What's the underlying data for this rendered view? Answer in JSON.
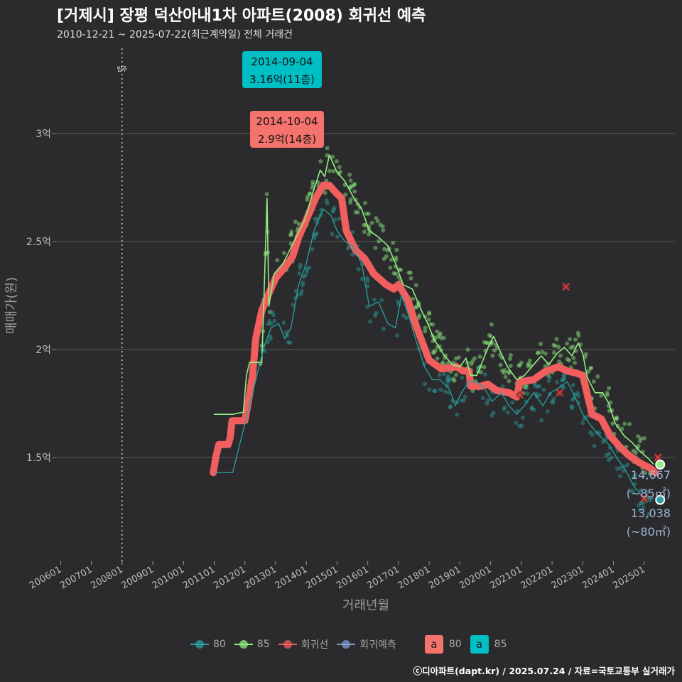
{
  "title": "[거제시] 장평 덕산아내1차 아파트(2008) 회귀선 예측",
  "subtitle": "2010-12-21 ~ 2025-07-22(최근계약일) 전체 거래건",
  "credit": "ⓒ디아파트(dapt.kr) / 2025.07.24 / 자료=국토교통부 실거래가",
  "colors": {
    "background": "#2b2b2d",
    "grid": "#5a5a5a",
    "area80": "#2aa0a0",
    "area85": "#90ee80",
    "regression": "#f05e5e",
    "forecast": "#7f9fcf",
    "label80": "#f4736c",
    "label85": "#00bfc4"
  },
  "legend": {
    "items": [
      {
        "key": "80",
        "label": "80",
        "color": "#2aa0a0"
      },
      {
        "key": "85",
        "label": "85",
        "color": "#90ee80"
      },
      {
        "key": "reg",
        "label": "회귀선",
        "color": "#f05e5e"
      },
      {
        "key": "fc",
        "label": "회귀예측",
        "color": "#7f9fcf"
      }
    ],
    "boxes": [
      {
        "letter": "a",
        "label": "80",
        "color": "#f4736c"
      },
      {
        "letter": "a",
        "label": "85",
        "color": "#00bfc4"
      }
    ]
  },
  "chart_data": {
    "type": "line",
    "xlabel": "거래년월",
    "ylabel": "매매가(원)",
    "x_range": [
      2005.83,
      2026.0
    ],
    "y_range": [
      1.02,
      3.42
    ],
    "y_ticks": [
      {
        "v": 1.5,
        "label": "1.5억"
      },
      {
        "v": 2.0,
        "label": "2억"
      },
      {
        "v": 2.5,
        "label": "2.5억"
      },
      {
        "v": 3.0,
        "label": "3억"
      }
    ],
    "x_ticks": [
      {
        "v": 2006.0,
        "label": "200601"
      },
      {
        "v": 2007.0,
        "label": "200701"
      },
      {
        "v": 2008.0,
        "label": "200801"
      },
      {
        "v": 2009.0,
        "label": "200901"
      },
      {
        "v": 2010.0,
        "label": "201001"
      },
      {
        "v": 2011.0,
        "label": "201101"
      },
      {
        "v": 2012.0,
        "label": "201201"
      },
      {
        "v": 2013.0,
        "label": "201301"
      },
      {
        "v": 2014.0,
        "label": "201401"
      },
      {
        "v": 2015.0,
        "label": "201501"
      },
      {
        "v": 2016.0,
        "label": "201601"
      },
      {
        "v": 2017.0,
        "label": "201701"
      },
      {
        "v": 2018.0,
        "label": "201801"
      },
      {
        "v": 2019.0,
        "label": "201901"
      },
      {
        "v": 2020.0,
        "label": "202001"
      },
      {
        "v": 2021.0,
        "label": "202101"
      },
      {
        "v": 2022.0,
        "label": "202201"
      },
      {
        "v": 2023.0,
        "label": "202301"
      },
      {
        "v": 2024.0,
        "label": "202401"
      },
      {
        "v": 2025.0,
        "label": "202501"
      }
    ],
    "move_in": {
      "x": 2008.0,
      "label": "입주"
    },
    "series": [
      {
        "name": "회귀선",
        "color": "#f05e5e",
        "points": [
          [
            2010.97,
            1.43
          ],
          [
            2011.05,
            1.5
          ],
          [
            2011.15,
            1.56
          ],
          [
            2011.45,
            1.56
          ],
          [
            2011.52,
            1.59
          ],
          [
            2011.58,
            1.67
          ],
          [
            2012.0,
            1.67
          ],
          [
            2012.1,
            1.75
          ],
          [
            2012.25,
            1.88
          ],
          [
            2012.35,
            2.05
          ],
          [
            2012.55,
            2.18
          ],
          [
            2012.75,
            2.25
          ],
          [
            2013.0,
            2.33
          ],
          [
            2013.3,
            2.38
          ],
          [
            2013.55,
            2.43
          ],
          [
            2013.75,
            2.52
          ],
          [
            2014.0,
            2.6
          ],
          [
            2014.3,
            2.7
          ],
          [
            2014.55,
            2.76
          ],
          [
            2014.75,
            2.76
          ],
          [
            2015.0,
            2.72
          ],
          [
            2015.15,
            2.7
          ],
          [
            2015.3,
            2.55
          ],
          [
            2015.6,
            2.46
          ],
          [
            2015.9,
            2.42
          ],
          [
            2016.2,
            2.35
          ],
          [
            2016.6,
            2.3
          ],
          [
            2016.85,
            2.28
          ],
          [
            2017.0,
            2.3
          ],
          [
            2017.3,
            2.23
          ],
          [
            2017.6,
            2.1
          ],
          [
            2018.0,
            1.95
          ],
          [
            2018.4,
            1.91
          ],
          [
            2018.9,
            1.92
          ],
          [
            2019.1,
            1.9
          ],
          [
            2019.3,
            1.9
          ],
          [
            2019.35,
            1.83
          ],
          [
            2019.7,
            1.83
          ],
          [
            2019.9,
            1.84
          ],
          [
            2020.2,
            1.81
          ],
          [
            2020.6,
            1.8
          ],
          [
            2020.85,
            1.78
          ],
          [
            2020.95,
            1.85
          ],
          [
            2021.4,
            1.86
          ],
          [
            2021.8,
            1.9
          ],
          [
            2022.2,
            1.92
          ],
          [
            2022.5,
            1.9
          ],
          [
            2022.8,
            1.89
          ],
          [
            2023.0,
            1.88
          ],
          [
            2023.3,
            1.7
          ],
          [
            2023.6,
            1.68
          ],
          [
            2023.9,
            1.6
          ],
          [
            2024.2,
            1.55
          ],
          [
            2024.5,
            1.51
          ],
          [
            2024.8,
            1.48
          ],
          [
            2025.2,
            1.45
          ],
          [
            2025.35,
            1.43
          ]
        ]
      },
      {
        "name": "85",
        "color": "#90ee80",
        "points": [
          [
            2011.0,
            1.7
          ],
          [
            2011.6,
            1.7
          ],
          [
            2011.95,
            1.71
          ],
          [
            2012.05,
            1.88
          ],
          [
            2012.15,
            1.94
          ],
          [
            2012.55,
            1.94
          ],
          [
            2012.6,
            2.15
          ],
          [
            2012.72,
            2.7
          ],
          [
            2012.78,
            2.2
          ],
          [
            2012.95,
            2.35
          ],
          [
            2013.25,
            2.4
          ],
          [
            2013.6,
            2.5
          ],
          [
            2013.95,
            2.6
          ],
          [
            2014.2,
            2.72
          ],
          [
            2014.45,
            2.83
          ],
          [
            2014.6,
            2.8
          ],
          [
            2014.75,
            2.9
          ],
          [
            2015.0,
            2.82
          ],
          [
            2015.25,
            2.78
          ],
          [
            2015.55,
            2.7
          ],
          [
            2015.8,
            2.65
          ],
          [
            2016.05,
            2.55
          ],
          [
            2016.35,
            2.52
          ],
          [
            2016.65,
            2.48
          ],
          [
            2016.9,
            2.4
          ],
          [
            2017.15,
            2.3
          ],
          [
            2017.45,
            2.28
          ],
          [
            2017.75,
            2.18
          ],
          [
            2017.95,
            2.12
          ],
          [
            2018.15,
            2.05
          ],
          [
            2018.45,
            1.98
          ],
          [
            2018.75,
            1.93
          ],
          [
            2019.0,
            1.92
          ],
          [
            2019.2,
            1.96
          ],
          [
            2019.35,
            1.88
          ],
          [
            2019.55,
            1.88
          ],
          [
            2019.75,
            1.95
          ],
          [
            2019.95,
            2.02
          ],
          [
            2020.1,
            2.06
          ],
          [
            2020.35,
            1.98
          ],
          [
            2020.55,
            1.92
          ],
          [
            2020.85,
            1.86
          ],
          [
            2021.1,
            1.88
          ],
          [
            2021.4,
            1.93
          ],
          [
            2021.65,
            1.97
          ],
          [
            2021.9,
            1.93
          ],
          [
            2022.15,
            1.98
          ],
          [
            2022.4,
            2.01
          ],
          [
            2022.65,
            1.97
          ],
          [
            2022.85,
            2.03
          ],
          [
            2023.0,
            1.98
          ],
          [
            2023.15,
            1.87
          ],
          [
            2023.4,
            1.8
          ],
          [
            2023.65,
            1.8
          ],
          [
            2023.85,
            1.75
          ],
          [
            2024.05,
            1.66
          ],
          [
            2024.35,
            1.6
          ],
          [
            2024.6,
            1.57
          ],
          [
            2024.85,
            1.53
          ],
          [
            2025.1,
            1.5
          ],
          [
            2025.3,
            1.47
          ]
        ]
      },
      {
        "name": "80",
        "color": "#2aa0a0",
        "points": [
          [
            2011.0,
            1.43
          ],
          [
            2011.6,
            1.43
          ],
          [
            2012.6,
            2.0
          ],
          [
            2012.85,
            2.1
          ],
          [
            2013.1,
            2.12
          ],
          [
            2013.3,
            2.05
          ],
          [
            2013.5,
            2.1
          ],
          [
            2013.75,
            2.3
          ],
          [
            2014.0,
            2.4
          ],
          [
            2014.25,
            2.55
          ],
          [
            2014.55,
            2.65
          ],
          [
            2014.8,
            2.62
          ],
          [
            2015.0,
            2.55
          ],
          [
            2015.25,
            2.5
          ],
          [
            2015.5,
            2.48
          ],
          [
            2015.8,
            2.4
          ],
          [
            2016.05,
            2.2
          ],
          [
            2016.35,
            2.22
          ],
          [
            2016.65,
            2.12
          ],
          [
            2016.9,
            2.1
          ],
          [
            2017.1,
            2.25
          ],
          [
            2017.35,
            2.15
          ],
          [
            2017.55,
            2.05
          ],
          [
            2017.85,
            1.92
          ],
          [
            2018.1,
            1.86
          ],
          [
            2018.35,
            1.86
          ],
          [
            2018.65,
            1.82
          ],
          [
            2018.85,
            1.74
          ],
          [
            2019.05,
            1.8
          ],
          [
            2019.3,
            1.85
          ],
          [
            2019.55,
            1.85
          ],
          [
            2019.8,
            1.82
          ],
          [
            2020.05,
            1.76
          ],
          [
            2020.35,
            1.8
          ],
          [
            2020.6,
            1.74
          ],
          [
            2020.85,
            1.7
          ],
          [
            2021.1,
            1.74
          ],
          [
            2021.4,
            1.8
          ],
          [
            2021.7,
            1.74
          ],
          [
            2021.95,
            1.8
          ],
          [
            2022.2,
            1.82
          ],
          [
            2022.5,
            1.85
          ],
          [
            2022.75,
            1.78
          ],
          [
            2023.0,
            1.7
          ],
          [
            2023.25,
            1.65
          ],
          [
            2023.55,
            1.6
          ],
          [
            2023.85,
            1.56
          ],
          [
            2024.1,
            1.5
          ],
          [
            2024.4,
            1.44
          ],
          [
            2024.65,
            1.37
          ],
          [
            2024.95,
            1.32
          ],
          [
            2025.3,
            1.31
          ]
        ]
      }
    ],
    "forecast_points": [
      {
        "x": 2025.52,
        "y": 1.467,
        "color": "#90ee80"
      },
      {
        "x": 2025.52,
        "y": 1.304,
        "color": "#2aa0a0"
      }
    ],
    "outliers": [
      [
        2022.45,
        2.29
      ],
      [
        2022.25,
        1.8
      ],
      [
        2020.95,
        1.79
      ],
      [
        2025.45,
        1.5
      ],
      [
        2025.0,
        1.31
      ]
    ],
    "annotations": [
      {
        "id": "max85",
        "date": "2014-09-04",
        "price": "3.16억(11층)",
        "x": 2014.67,
        "y": 3.16,
        "color": "#00bfc4"
      },
      {
        "id": "max80",
        "date": "2014-10-04",
        "price": "2.9억(14층)",
        "x": 2014.75,
        "y": 2.9,
        "color": "#f4736c"
      }
    ],
    "end_labels": [
      {
        "value": "14,667",
        "area": "(~85㎡)"
      },
      {
        "value": "13,038",
        "area": "(~80㎡)"
      }
    ]
  }
}
